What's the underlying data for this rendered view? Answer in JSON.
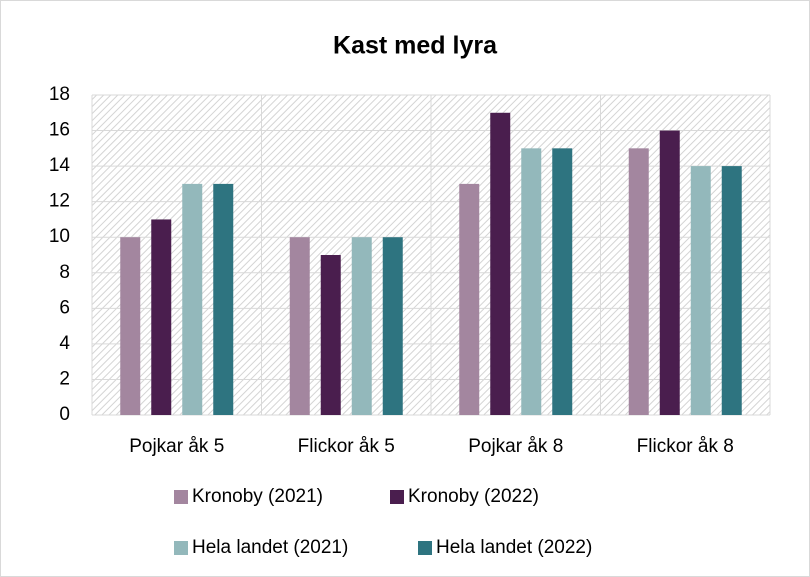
{
  "chart_data": {
    "type": "bar",
    "title": "Kast med lyra",
    "categories": [
      "Pojkar åk 5",
      "Flickor åk 5",
      "Pojkar åk 8",
      "Flickor åk 8"
    ],
    "series": [
      {
        "name": "Kronoby (2021)",
        "color": "#a3869f",
        "values": [
          10,
          10,
          13,
          15
        ]
      },
      {
        "name": "Kronoby (2022)",
        "color": "#4a1e4e",
        "values": [
          11,
          9,
          17,
          16
        ]
      },
      {
        "name": "Hela landet (2021)",
        "color": "#93b8bb",
        "values": [
          13,
          10,
          15,
          14
        ]
      },
      {
        "name": "Hela landet (2022)",
        "color": "#2e7480",
        "values": [
          13,
          10,
          15,
          14
        ]
      }
    ],
    "ylim": [
      0,
      18
    ],
    "yticks": [
      0,
      2,
      4,
      6,
      8,
      10,
      12,
      14,
      16,
      18
    ],
    "grid": true,
    "legend": "bottom"
  }
}
